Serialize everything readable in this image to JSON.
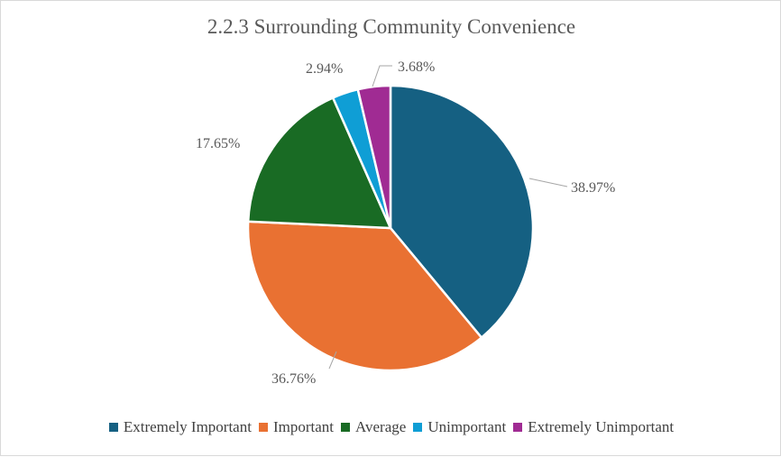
{
  "chart_data": {
    "type": "pie",
    "title": "2.2.3 Surrounding Community Convenience",
    "categories": [
      "Extremely Important",
      "Important",
      "Average",
      "Unimportant",
      "Extremely Unimportant"
    ],
    "values": [
      38.97,
      36.76,
      17.65,
      2.94,
      3.68
    ],
    "data_labels": [
      "38.97%",
      "36.76%",
      "17.65%",
      "2.94%",
      "3.68%"
    ],
    "colors": [
      "#156082",
      "#E97132",
      "#196B24",
      "#0F9ED5",
      "#A02B93"
    ],
    "legend_position": "bottom"
  }
}
